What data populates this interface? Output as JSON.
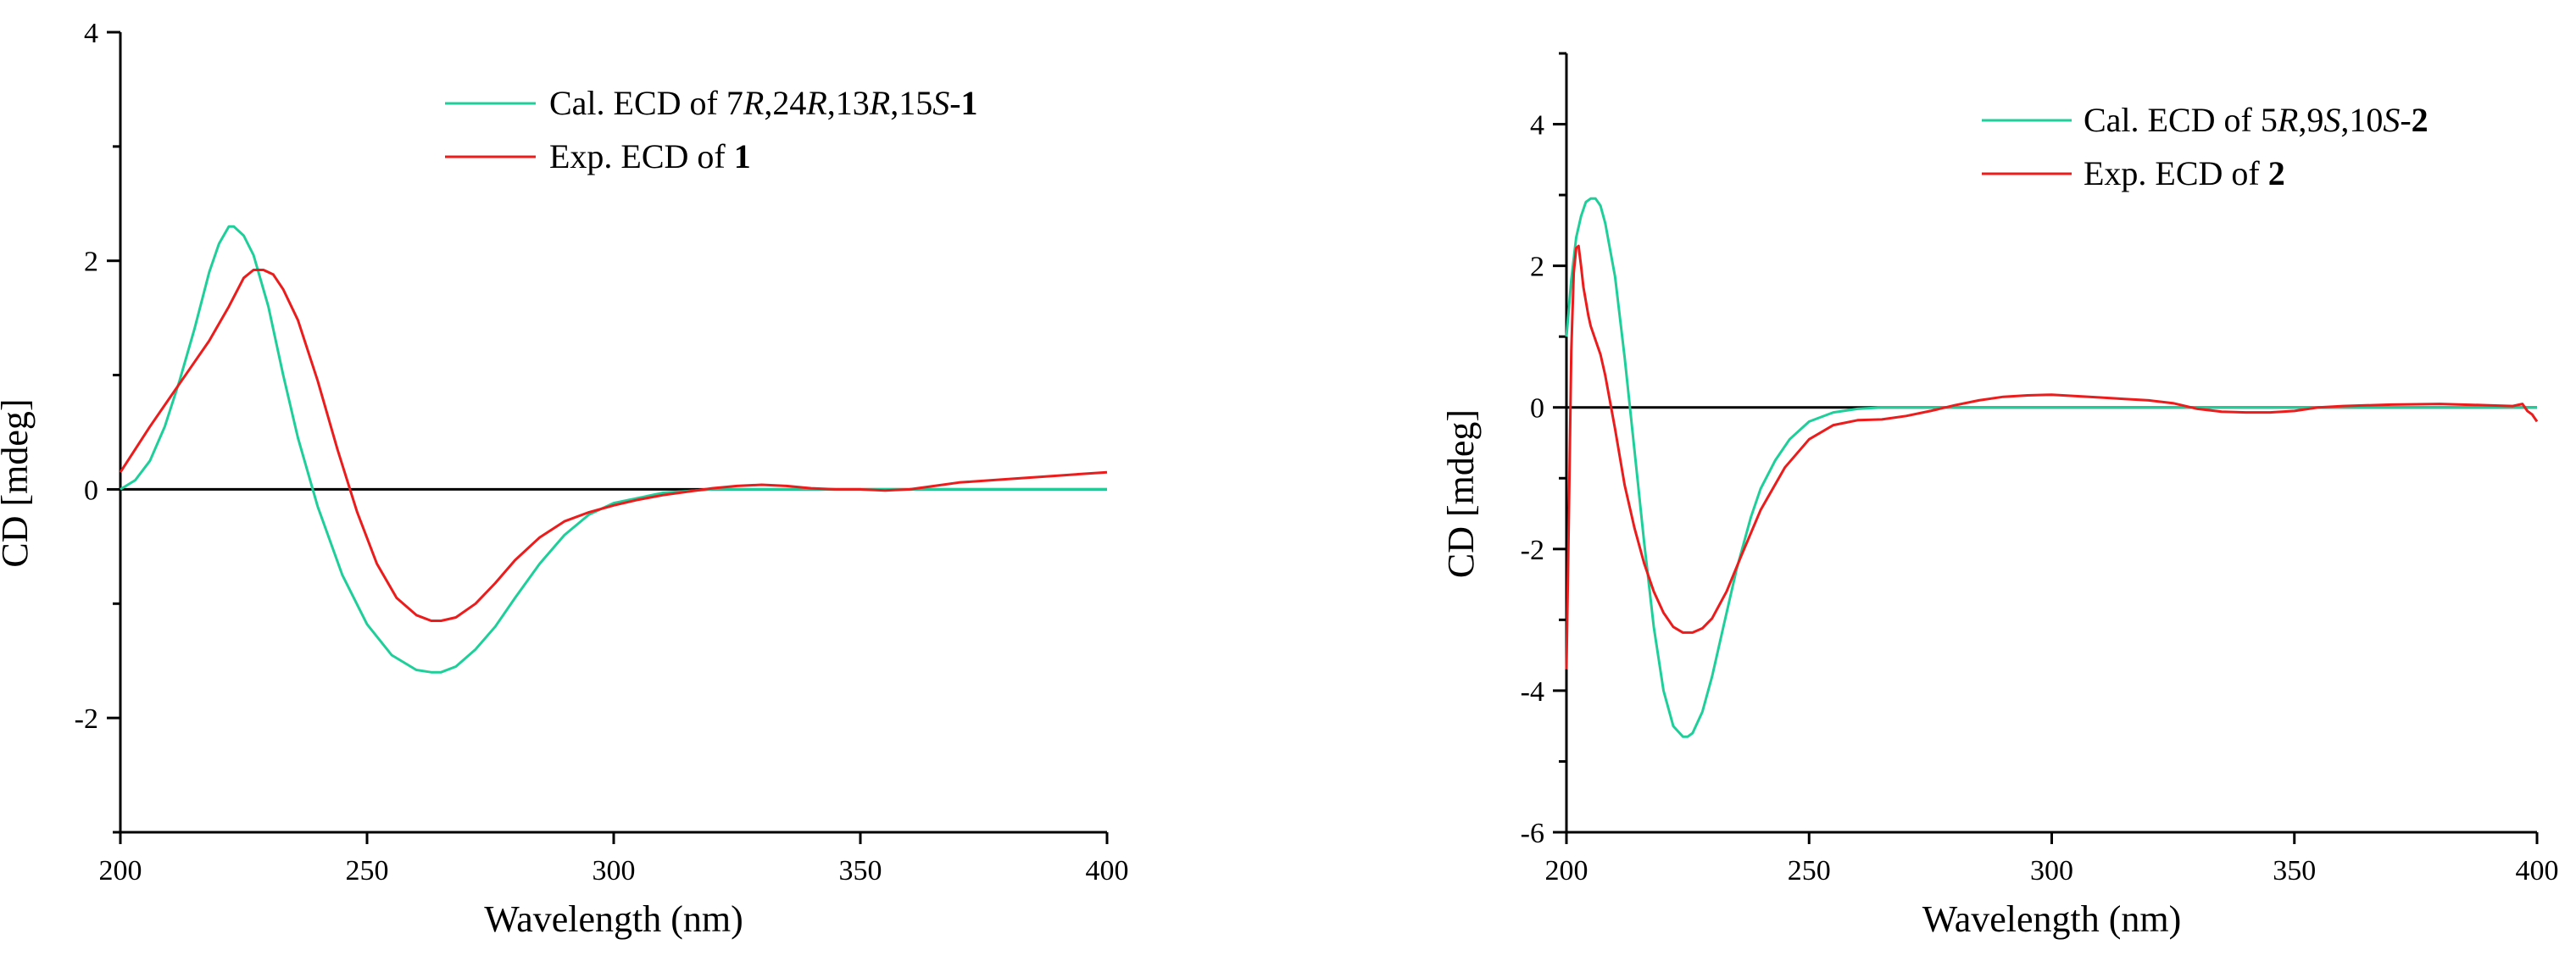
{
  "chart_data": [
    {
      "type": "line",
      "xlabel": "Wavelength (nm)",
      "ylabel": "CD [mdeg]",
      "xlim": [
        200,
        400
      ],
      "ylim": [
        -3,
        4
      ],
      "xticks": [
        200,
        250,
        300,
        350,
        400
      ],
      "yticks": [
        4,
        2,
        0,
        -2
      ],
      "zero_line": true,
      "legend_position": "top-right",
      "series": [
        {
          "name": "Cal. ECD of 7R,24R,13R,15S-1",
          "legend_parts": [
            {
              "text": "Cal. ECD of 7",
              "style": "normal"
            },
            {
              "text": "R",
              "style": "italic"
            },
            {
              "text": ",24",
              "style": "normal"
            },
            {
              "text": "R",
              "style": "italic"
            },
            {
              "text": ",13",
              "style": "normal"
            },
            {
              "text": "R",
              "style": "italic"
            },
            {
              "text": ",15",
              "style": "normal"
            },
            {
              "text": "S",
              "style": "italic"
            },
            {
              "text": "-",
              "style": "normal"
            },
            {
              "text": "1",
              "style": "bold"
            }
          ],
          "color": "#1fcf9a",
          "x": [
            200,
            203,
            206,
            209,
            212,
            215,
            218,
            220,
            222,
            223,
            225,
            227,
            230,
            233,
            236,
            240,
            245,
            250,
            255,
            260,
            263,
            265,
            268,
            272,
            276,
            280,
            285,
            290,
            295,
            300,
            310,
            320,
            330,
            340,
            350,
            360,
            370,
            380,
            390,
            400
          ],
          "y": [
            0.0,
            0.08,
            0.25,
            0.55,
            0.95,
            1.4,
            1.9,
            2.15,
            2.3,
            2.3,
            2.22,
            2.05,
            1.6,
            1.0,
            0.45,
            -0.15,
            -0.75,
            -1.18,
            -1.45,
            -1.58,
            -1.6,
            -1.6,
            -1.55,
            -1.4,
            -1.2,
            -0.95,
            -0.65,
            -0.4,
            -0.22,
            -0.12,
            -0.03,
            0.0,
            0.0,
            0.0,
            0.0,
            0.0,
            0.0,
            0.0,
            0.0,
            0.0
          ]
        },
        {
          "name": "Exp. ECD of 1",
          "legend_parts": [
            {
              "text": "Exp. ECD of ",
              "style": "normal"
            },
            {
              "text": "1",
              "style": "bold"
            }
          ],
          "color": "#ec1c1c",
          "x": [
            200,
            203,
            206,
            210,
            214,
            218,
            222,
            225,
            227,
            229,
            231,
            233,
            236,
            240,
            244,
            248,
            252,
            256,
            260,
            263,
            265,
            268,
            272,
            276,
            280,
            285,
            290,
            295,
            300,
            305,
            310,
            315,
            320,
            325,
            330,
            335,
            340,
            345,
            350,
            355,
            360,
            365,
            370,
            380,
            390,
            400
          ],
          "y": [
            0.15,
            0.35,
            0.55,
            0.8,
            1.05,
            1.3,
            1.6,
            1.85,
            1.92,
            1.92,
            1.88,
            1.75,
            1.48,
            0.95,
            0.35,
            -0.2,
            -0.65,
            -0.95,
            -1.1,
            -1.15,
            -1.15,
            -1.12,
            -1.0,
            -0.82,
            -0.62,
            -0.42,
            -0.28,
            -0.2,
            -0.14,
            -0.09,
            -0.05,
            -0.02,
            0.01,
            0.03,
            0.04,
            0.03,
            0.01,
            0.0,
            0.0,
            -0.01,
            0.0,
            0.03,
            0.06,
            0.09,
            0.12,
            0.15
          ]
        }
      ]
    },
    {
      "type": "line",
      "xlabel": "Wavelength (nm)",
      "ylabel": "CD [mdeg]",
      "xlim": [
        200,
        400
      ],
      "ylim": [
        -6,
        5
      ],
      "xticks": [
        200,
        250,
        300,
        350,
        400
      ],
      "yticks": [
        4,
        2,
        0,
        -2,
        -4,
        -6
      ],
      "zero_line": true,
      "legend_position": "top-right",
      "series": [
        {
          "name": "Cal. ECD of 5R,9S,10S-2",
          "legend_parts": [
            {
              "text": "Cal. ECD of 5",
              "style": "normal"
            },
            {
              "text": "R",
              "style": "italic"
            },
            {
              "text": ",9",
              "style": "normal"
            },
            {
              "text": "S",
              "style": "italic"
            },
            {
              "text": ",10",
              "style": "normal"
            },
            {
              "text": "S",
              "style": "italic"
            },
            {
              "text": "-",
              "style": "normal"
            },
            {
              "text": "2",
              "style": "bold"
            }
          ],
          "color": "#1fcf9a",
          "x": [
            200,
            201,
            202,
            203,
            204,
            205,
            206,
            207,
            208,
            210,
            212,
            214,
            216,
            218,
            220,
            222,
            224,
            225,
            226,
            228,
            230,
            232,
            235,
            238,
            240,
            243,
            246,
            250,
            255,
            260,
            265,
            270,
            280,
            300,
            350,
            400
          ],
          "y": [
            1.0,
            1.8,
            2.4,
            2.7,
            2.9,
            2.95,
            2.95,
            2.85,
            2.6,
            1.85,
            0.7,
            -0.6,
            -1.9,
            -3.1,
            -4.0,
            -4.5,
            -4.65,
            -4.65,
            -4.6,
            -4.3,
            -3.8,
            -3.2,
            -2.3,
            -1.55,
            -1.15,
            -0.75,
            -0.45,
            -0.2,
            -0.07,
            -0.02,
            0.0,
            0.0,
            0.0,
            0.0,
            0.0,
            0.0
          ]
        },
        {
          "name": "Exp. ECD of 2",
          "legend_parts": [
            {
              "text": "Exp. ECD of ",
              "style": "normal"
            },
            {
              "text": "2",
              "style": "bold"
            }
          ],
          "color": "#ec1c1c",
          "x": [
            200,
            200.5,
            201,
            201.5,
            202,
            202.5,
            203,
            203.5,
            204,
            204.5,
            205,
            206,
            207,
            208,
            210,
            212,
            214,
            216,
            218,
            220,
            222,
            224,
            226,
            228,
            230,
            233,
            236,
            240,
            245,
            250,
            255,
            260,
            265,
            270,
            275,
            280,
            285,
            290,
            295,
            300,
            305,
            310,
            315,
            320,
            325,
            330,
            335,
            340,
            345,
            350,
            355,
            360,
            370,
            380,
            390,
            395,
            397,
            398,
            399,
            400
          ],
          "y": [
            -3.7,
            -1.5,
            0.8,
            1.9,
            2.25,
            2.28,
            2.0,
            1.7,
            1.5,
            1.3,
            1.15,
            0.95,
            0.75,
            0.45,
            -0.3,
            -1.1,
            -1.7,
            -2.2,
            -2.6,
            -2.9,
            -3.1,
            -3.18,
            -3.18,
            -3.12,
            -2.98,
            -2.6,
            -2.1,
            -1.45,
            -0.85,
            -0.45,
            -0.25,
            -0.18,
            -0.17,
            -0.12,
            -0.05,
            0.03,
            0.1,
            0.15,
            0.17,
            0.18,
            0.16,
            0.14,
            0.12,
            0.1,
            0.06,
            -0.02,
            -0.06,
            -0.07,
            -0.07,
            -0.05,
            0.0,
            0.02,
            0.04,
            0.05,
            0.03,
            0.02,
            0.05,
            -0.05,
            -0.1,
            -0.2
          ]
        }
      ]
    }
  ]
}
